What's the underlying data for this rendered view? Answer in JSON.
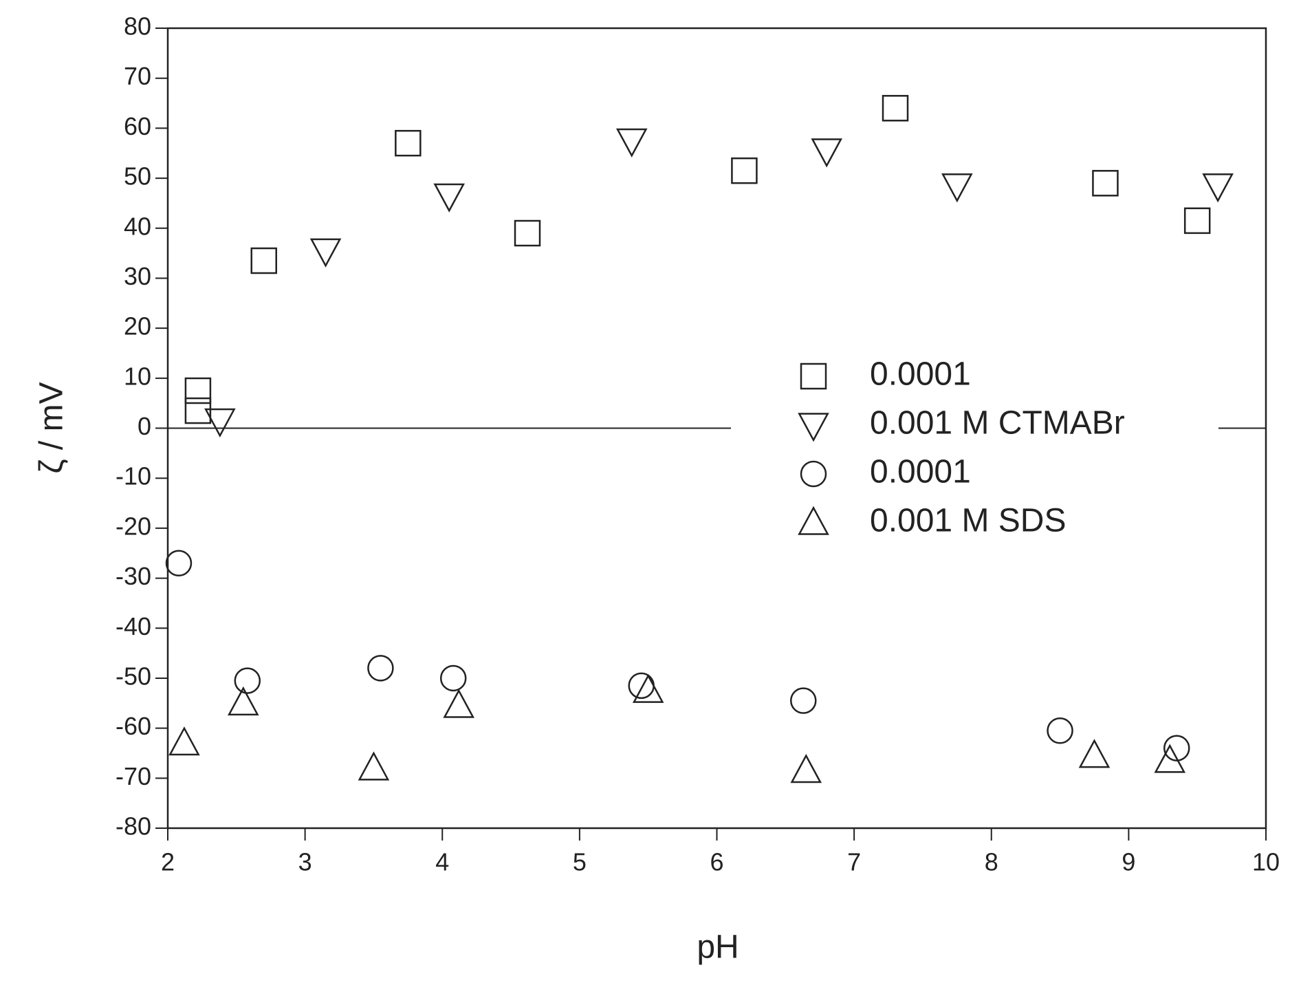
{
  "chart_data": {
    "type": "scatter",
    "xlabel": "pH",
    "ylabel": "ζ / mV",
    "xlim": [
      2,
      10
    ],
    "ylim": [
      -80,
      80
    ],
    "xticks": [
      2,
      3,
      4,
      5,
      6,
      7,
      8,
      9,
      10
    ],
    "yticks": [
      -80,
      -70,
      -60,
      -50,
      -40,
      -30,
      -20,
      -10,
      0,
      10,
      20,
      30,
      40,
      50,
      60,
      70,
      80
    ],
    "zero_line": true,
    "series": [
      {
        "name": "0.0001",
        "marker": "square",
        "color": "#222222",
        "x": [
          2.22,
          2.22,
          2.7,
          3.75,
          4.62,
          6.2,
          7.3,
          8.83,
          9.5
        ],
        "values": [
          7.5,
          3.5,
          33.5,
          57,
          39,
          51.5,
          64,
          49,
          41.5
        ]
      },
      {
        "name": "0.001 M CTMABr",
        "marker": "triangle-down",
        "color": "#222222",
        "x": [
          2.38,
          3.15,
          4.05,
          5.38,
          6.8,
          7.75,
          9.65
        ],
        "values": [
          1.5,
          35.5,
          46.5,
          57.5,
          55.5,
          48.5,
          48.5
        ]
      },
      {
        "name": "0.0001",
        "marker": "circle",
        "color": "#222222",
        "x": [
          2.08,
          2.58,
          3.55,
          4.08,
          5.45,
          6.63,
          8.5,
          9.35
        ],
        "values": [
          -27,
          -50.5,
          -48,
          -50,
          -51.5,
          -54.5,
          -60.5,
          -64
        ]
      },
      {
        "name": "0.001 M SDS",
        "marker": "triangle-up",
        "color": "#222222",
        "x": [
          2.12,
          2.55,
          3.5,
          4.12,
          5.5,
          6.65,
          8.75,
          9.3
        ],
        "values": [
          -63,
          -55,
          -68,
          -55.5,
          -52.5,
          -68.5,
          -65.5,
          -66.5
        ]
      }
    ]
  }
}
